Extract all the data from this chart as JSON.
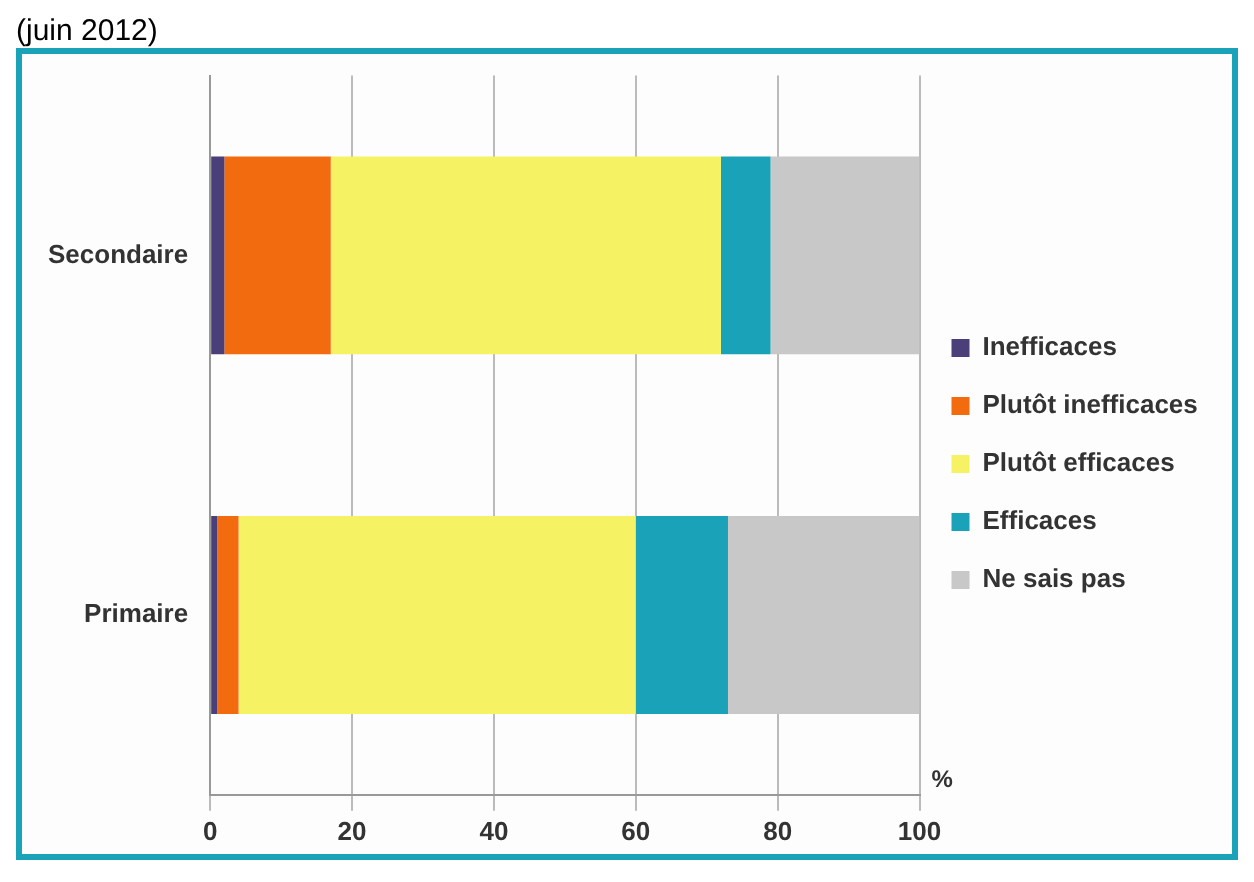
{
  "chart_data": {
    "type": "bar",
    "orientation": "horizontal",
    "stacked": true,
    "title": "(juin 2012)",
    "xlabel": "%",
    "categories": [
      "Secondaire",
      "Primaire"
    ],
    "series": [
      {
        "name": "Inefficaces",
        "color": "#4b3f7a",
        "values": [
          2,
          1
        ]
      },
      {
        "name": "Plutôt inefficaces",
        "color": "#f26b0f",
        "values": [
          15,
          3
        ]
      },
      {
        "name": "Plutôt efficaces",
        "color": "#f5f264",
        "values": [
          55,
          56
        ]
      },
      {
        "name": "Efficaces",
        "color": "#1aa3b8",
        "values": [
          7,
          13
        ]
      },
      {
        "name": "Ne sais pas",
        "color": "#c8c8c8",
        "values": [
          21,
          27
        ]
      }
    ],
    "xlim": [
      0,
      100
    ],
    "xticks": [
      0,
      20,
      40,
      60,
      80,
      100
    ],
    "grid": "x",
    "legend": "right"
  }
}
